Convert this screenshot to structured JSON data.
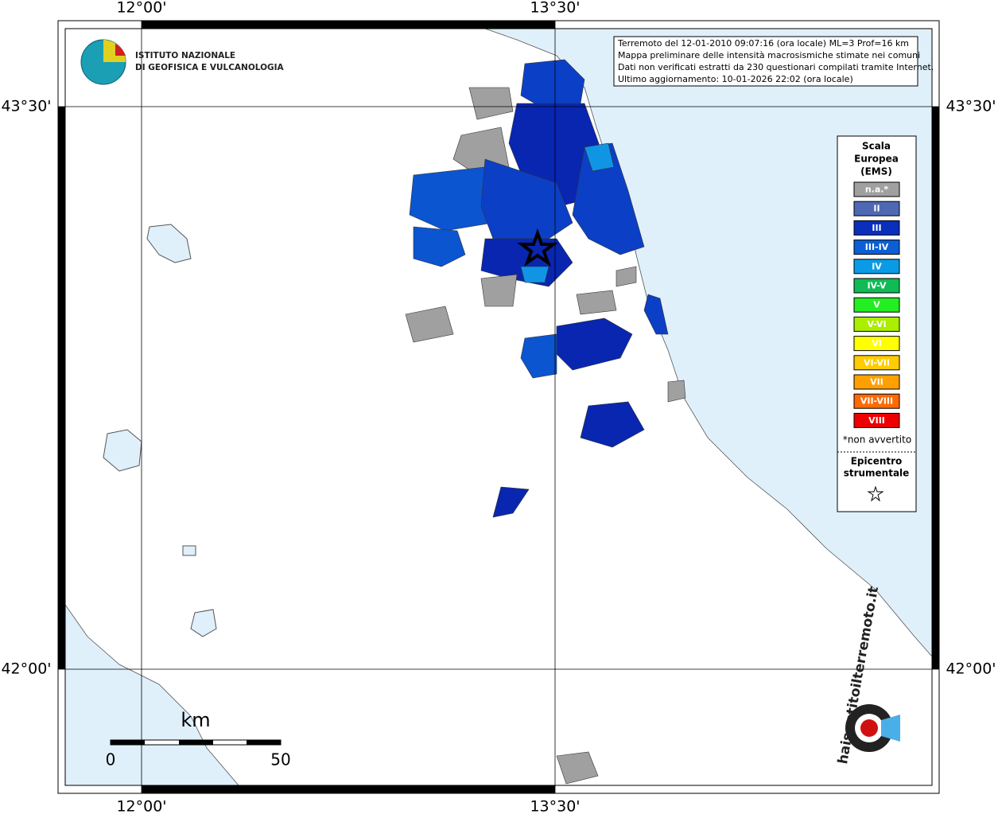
{
  "axes": {
    "lon": [
      "12°00'",
      "13°30'"
    ],
    "lat": [
      "43°30'",
      "42°00'"
    ]
  },
  "logo": {
    "ingv": [
      "ISTITUTO NAZIONALE",
      "DI GEOFISICA E VULCANOLOGIA"
    ],
    "haisentito": "haisentitoilterremoto.it"
  },
  "info": [
    "Terremoto del 12-01-2010 09:07:16 (ora locale) ML=3 Prof=16 km",
    "Mappa preliminare delle intensità macrosismiche stimate nei comuni",
    "Dati non verificati estratti da 230 questionari compilati tramite Internet.",
    "Ultimo aggiornamento: 10-01-2026 22:02 (ora locale)"
  ],
  "legend": {
    "title": [
      "Scala",
      "Europea",
      "(EMS)"
    ],
    "items": [
      {
        "label": "n.a.*",
        "color": "#a0a0a0"
      },
      {
        "label": "II",
        "color": "#4f68b4"
      },
      {
        "label": "III",
        "color": "#0a2fbd"
      },
      {
        "label": "III-IV",
        "color": "#0a5fd6"
      },
      {
        "label": "IV",
        "color": "#0a9be6"
      },
      {
        "label": "IV-V",
        "color": "#10bb55"
      },
      {
        "label": "V",
        "color": "#22ee22"
      },
      {
        "label": "V-VI",
        "color": "#aaee00"
      },
      {
        "label": "VI",
        "color": "#ffff00"
      },
      {
        "label": "VI-VII",
        "color": "#ffcc00"
      },
      {
        "label": "VII",
        "color": "#ffa000"
      },
      {
        "label": "VII-VIII",
        "color": "#ff6a00"
      },
      {
        "label": "VIII",
        "color": "#ee0000"
      }
    ],
    "note": "*non avvertito",
    "epicenter": [
      "Epicentro",
      "strumentale"
    ]
  },
  "scale": {
    "unit": "km",
    "start": "0",
    "end": "50"
  }
}
